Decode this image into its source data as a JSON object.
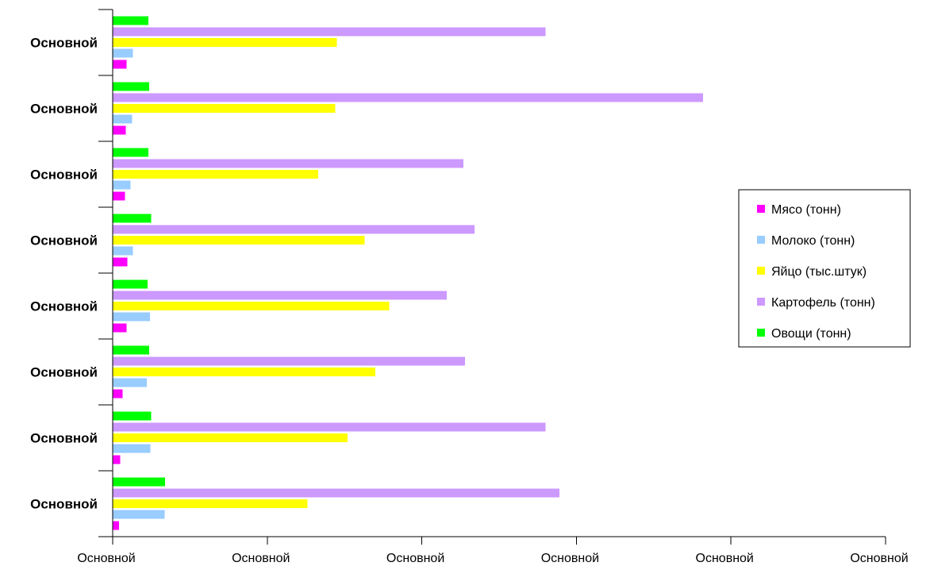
{
  "chart_data": {
    "type": "bar",
    "orientation": "horizontal",
    "title": "",
    "xlabel": "",
    "ylabel": "",
    "categories": [
      "Основной",
      "Основной",
      "Основной",
      "Основной",
      "Основной",
      "Основной",
      "Основной",
      "Основной"
    ],
    "x_tick_labels": [
      "Основной",
      "Основной",
      "Основной",
      "Основной",
      "Основной",
      "Основной"
    ],
    "xlim": [
      0,
      5
    ],
    "grid": false,
    "legend_position": "right",
    "series": [
      {
        "name": "Мясо (тонн)",
        "color": "#FF00FF",
        "values": [
          0.09,
          0.085,
          0.08,
          0.095,
          0.09,
          0.065,
          0.05,
          0.04
        ]
      },
      {
        "name": "Молоко (тонн)",
        "color": "#99CCFF",
        "values": [
          0.13,
          0.125,
          0.115,
          0.13,
          0.24,
          0.22,
          0.245,
          0.335
        ]
      },
      {
        "name": "Яйцо (тыс.штук)",
        "color": "#FFFF00",
        "values": [
          1.45,
          1.44,
          1.33,
          1.63,
          1.79,
          1.7,
          1.52,
          1.26
        ]
      },
      {
        "name": "Картофель (тонн)",
        "color": "#CC99FF",
        "values": [
          2.8,
          3.82,
          2.27,
          2.34,
          2.16,
          2.28,
          2.8,
          2.89
        ]
      },
      {
        "name": "Овощи (тонн)",
        "color": "#00FF00",
        "values": [
          0.23,
          0.235,
          0.23,
          0.25,
          0.225,
          0.235,
          0.25,
          0.34
        ]
      }
    ]
  }
}
